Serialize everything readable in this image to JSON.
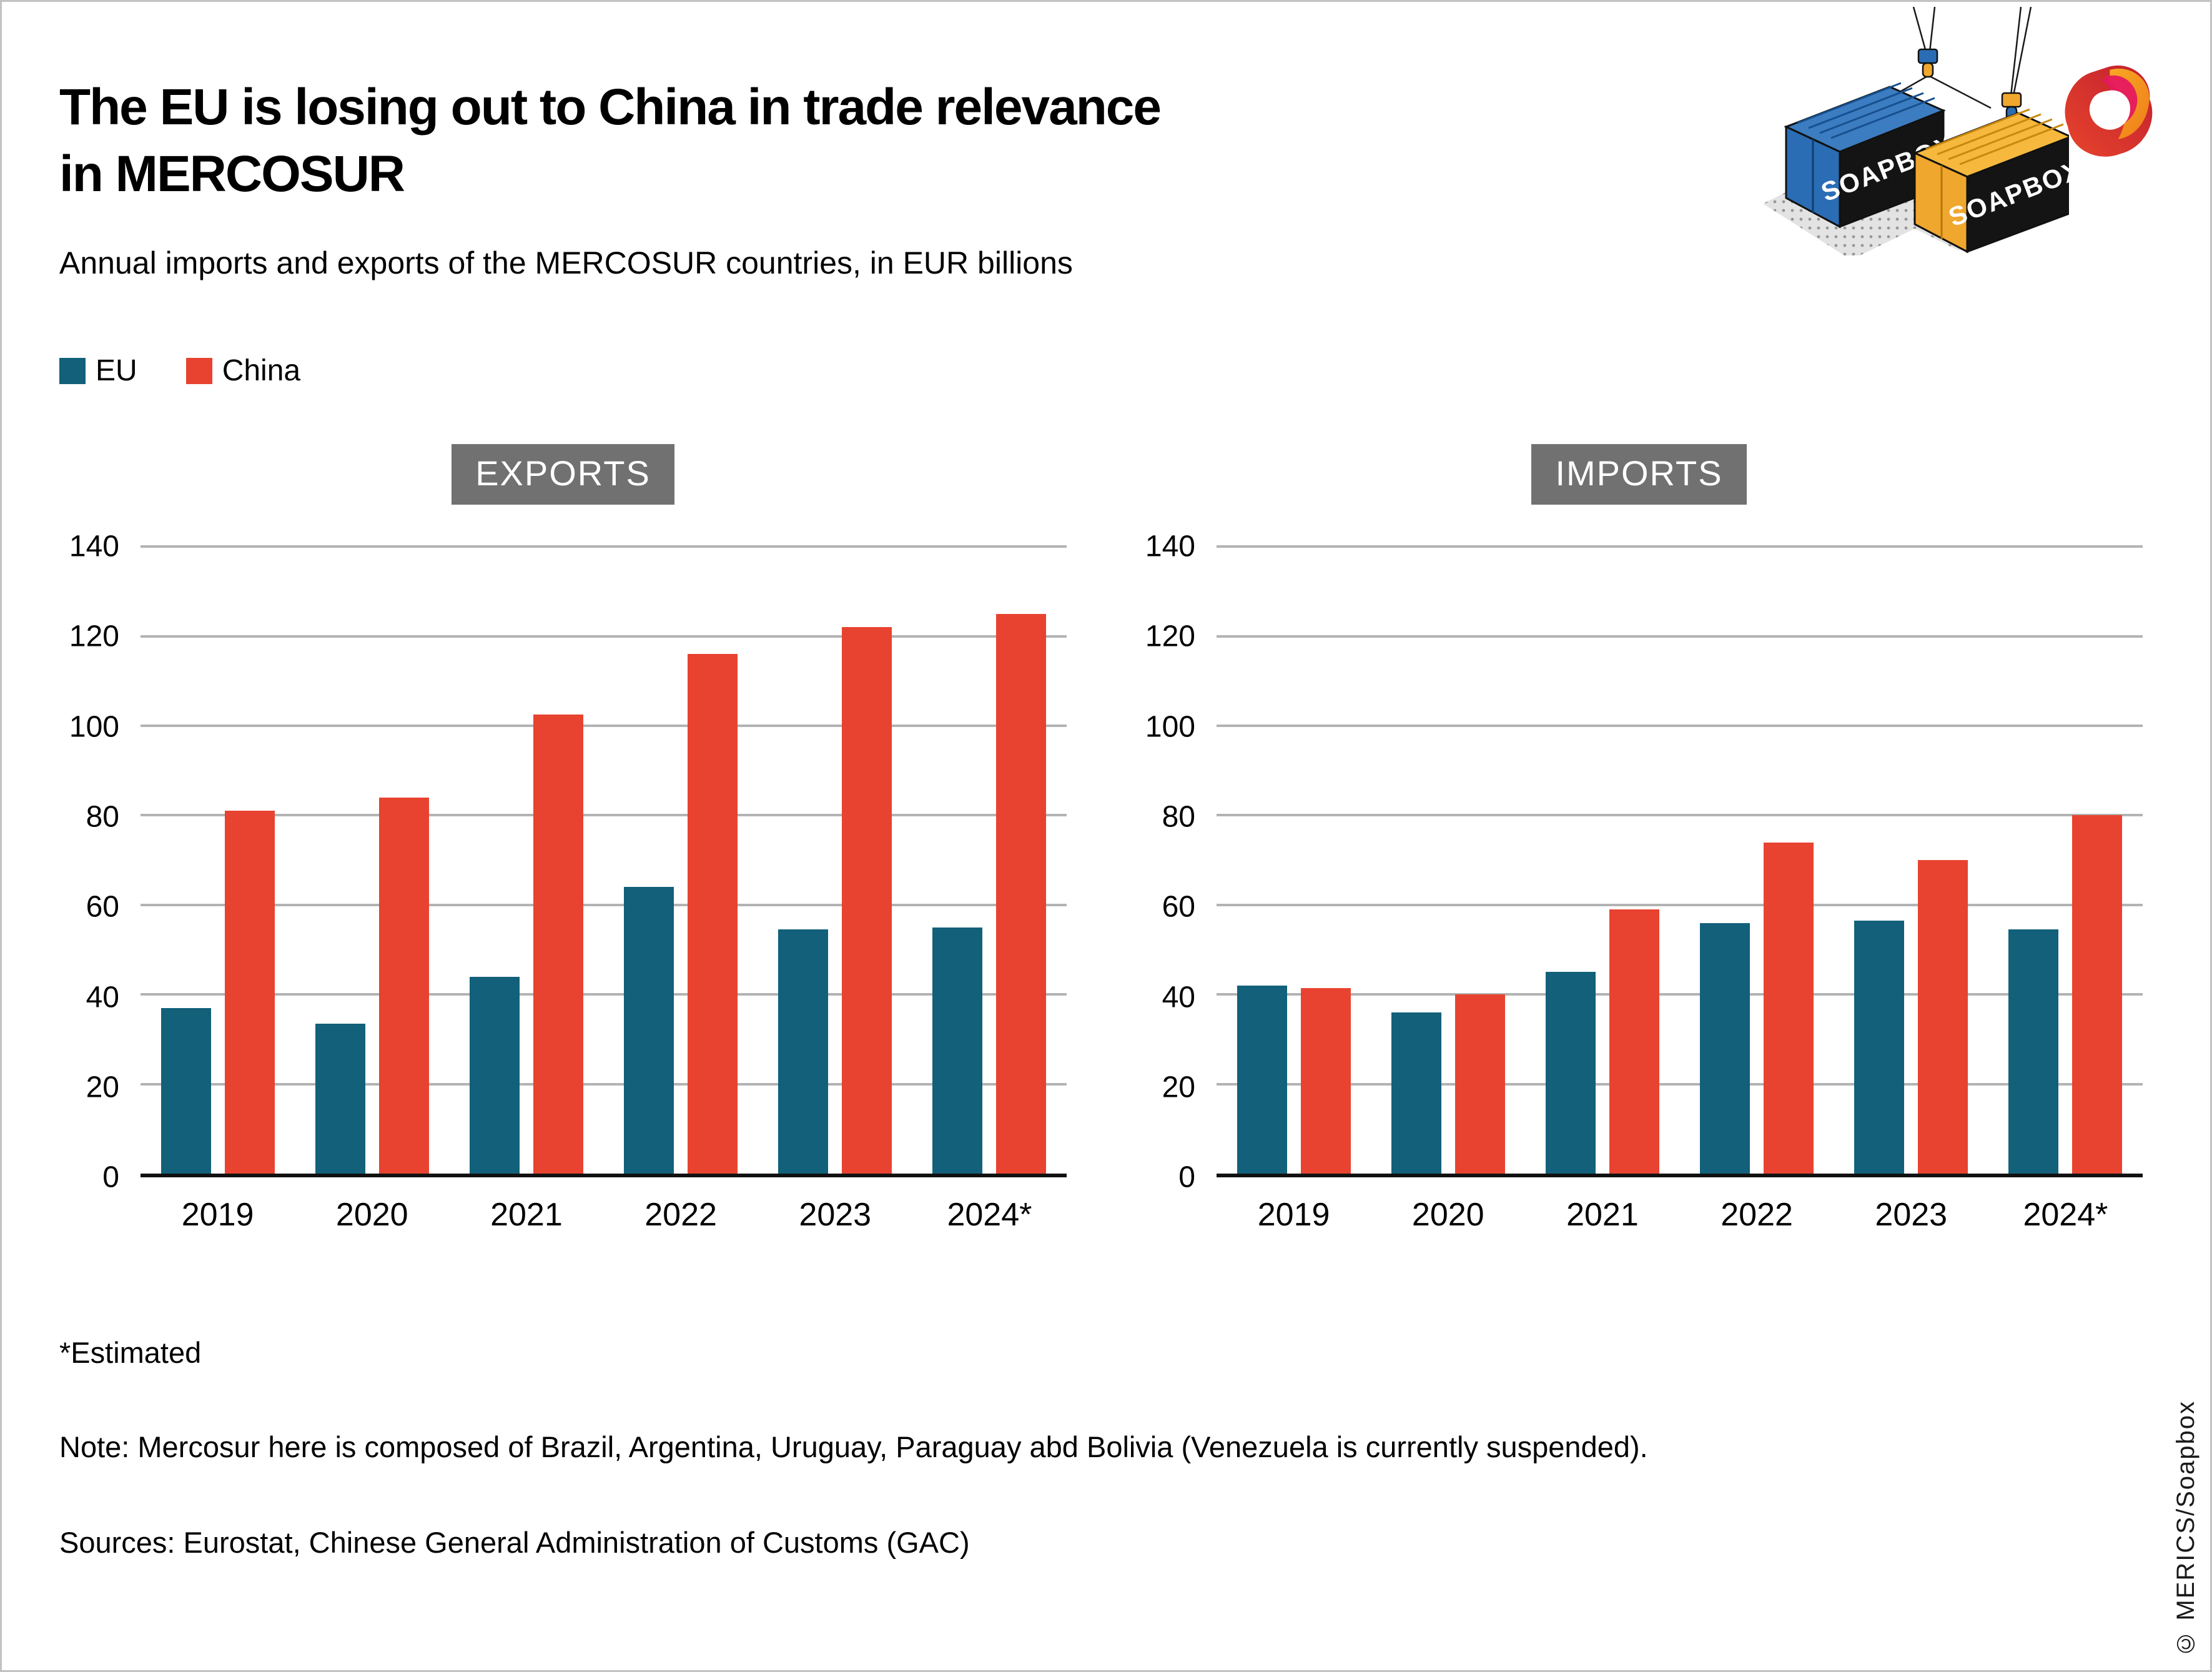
{
  "page": {
    "title_line1": "The EU is losing out to China in trade relevance",
    "title_line2": "in MERCOSUR",
    "subtitle": "Annual imports and exports of the MERCOSUR countries, in EUR billions",
    "footnote": "*Estimated",
    "note": "Note: Mercosur here is composed of Brazil, Argentina, Uruguay, Paraguay abd Bolivia (Venezuela is currently suspended).",
    "sources": "Sources: Eurostat, Chinese General Administration of Customs (GAC)",
    "copyright": "© MERICS/Soapbox"
  },
  "legend": {
    "items": [
      {
        "label": "EU",
        "color": "#12607a"
      },
      {
        "label": "China",
        "color": "#e84330"
      }
    ]
  },
  "illustration": {
    "container_label": "SOAPBOX"
  },
  "colors": {
    "eu": "#12607a",
    "china": "#e84330",
    "badge_bg": "#717171",
    "badge_text": "#ffffff",
    "gridline": "#b3b3b3",
    "axis_line": "#111111",
    "container_blue": "#2a6db4",
    "container_yellow": "#f0a72e",
    "logo_red": "#d7282f",
    "logo_pink": "#e5195e",
    "logo_orange": "#f59b1e"
  },
  "chart_data": [
    {
      "type": "bar",
      "title": "EXPORTS",
      "categories": [
        "2019",
        "2020",
        "2021",
        "2022",
        "2023",
        "2024*"
      ],
      "series": [
        {
          "name": "EU",
          "color": "#12607a",
          "values": [
            37,
            33.5,
            44,
            64,
            54.5,
            55
          ]
        },
        {
          "name": "China",
          "color": "#e84330",
          "values": [
            81,
            84,
            102.5,
            116,
            122,
            125
          ]
        }
      ],
      "xlabel": "",
      "ylabel": "",
      "ylim": [
        0,
        140
      ],
      "yticks": [
        0,
        20,
        40,
        60,
        80,
        100,
        120,
        140
      ],
      "grid": true,
      "legend_position": "top-left"
    },
    {
      "type": "bar",
      "title": "IMPORTS",
      "categories": [
        "2019",
        "2020",
        "2021",
        "2022",
        "2023",
        "2024*"
      ],
      "series": [
        {
          "name": "EU",
          "color": "#12607a",
          "values": [
            42,
            36,
            45,
            56,
            56.5,
            54.5
          ]
        },
        {
          "name": "China",
          "color": "#e84330",
          "values": [
            41.5,
            40,
            59,
            74,
            70,
            80
          ]
        }
      ],
      "xlabel": "",
      "ylabel": "",
      "ylim": [
        0,
        140
      ],
      "yticks": [
        0,
        20,
        40,
        60,
        80,
        100,
        120,
        140
      ],
      "grid": true,
      "legend_position": "top-left"
    }
  ]
}
